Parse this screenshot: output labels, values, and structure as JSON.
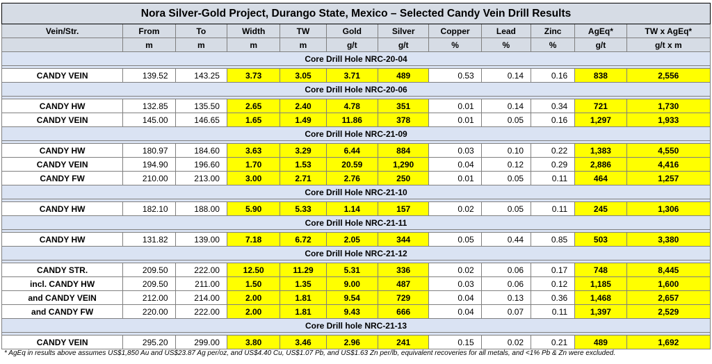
{
  "title": "Nora Silver-Gold Project, Durango State, Mexico – Selected Candy Vein Drill Results",
  "headers": [
    "Vein/Str.",
    "From",
    "To",
    "Width",
    "TW",
    "Gold",
    "Silver",
    "Copper",
    "Lead",
    "Zinc",
    "AgEq*",
    "TW x AgEq*"
  ],
  "units": [
    "",
    "m",
    "m",
    "m",
    "m",
    "g/t",
    "g/t",
    "%",
    "%",
    "%",
    "g/t",
    "g/t x m"
  ],
  "holes": [
    {
      "label": "Core Drill Hole NRC-20-04",
      "rows": [
        [
          "CANDY VEIN",
          "139.52",
          "143.25",
          "3.73",
          "3.05",
          "3.71",
          "489",
          "0.53",
          "0.14",
          "0.16",
          "838",
          "2,556"
        ]
      ]
    },
    {
      "label": "Core Drill Hole NRC-20-06",
      "rows": [
        [
          "CANDY HW",
          "132.85",
          "135.50",
          "2.65",
          "2.40",
          "4.78",
          "351",
          "0.01",
          "0.14",
          "0.34",
          "721",
          "1,730"
        ],
        [
          "CANDY VEIN",
          "145.00",
          "146.65",
          "1.65",
          "1.49",
          "11.86",
          "378",
          "0.01",
          "0.05",
          "0.16",
          "1,297",
          "1,933"
        ]
      ]
    },
    {
      "label": "Core Drill Hole NRC-21-09",
      "rows": [
        [
          "CANDY HW",
          "180.97",
          "184.60",
          "3.63",
          "3.29",
          "6.44",
          "884",
          "0.03",
          "0.10",
          "0.22",
          "1,383",
          "4,550"
        ],
        [
          "CANDY VEIN",
          "194.90",
          "196.60",
          "1.70",
          "1.53",
          "20.59",
          "1,290",
          "0.04",
          "0.12",
          "0.29",
          "2,886",
          "4,416"
        ],
        [
          "CANDY FW",
          "210.00",
          "213.00",
          "3.00",
          "2.71",
          "2.76",
          "250",
          "0.01",
          "0.05",
          "0.11",
          "464",
          "1,257"
        ]
      ]
    },
    {
      "label": "Core Drill Hole NRC-21-10",
      "rows": [
        [
          "CANDY HW",
          "182.10",
          "188.00",
          "5.90",
          "5.33",
          "1.14",
          "157",
          "0.02",
          "0.05",
          "0.11",
          "245",
          "1,306"
        ]
      ]
    },
    {
      "label": "Core Drill Hole NRC-21-11",
      "rows": [
        [
          "CANDY HW",
          "131.82",
          "139.00",
          "7.18",
          "6.72",
          "2.05",
          "344",
          "0.05",
          "0.44",
          "0.85",
          "503",
          "3,380"
        ]
      ]
    },
    {
      "label": "Core Drill Hole NRC-21-12",
      "rows": [
        [
          "CANDY STR.",
          "209.50",
          "222.00",
          "12.50",
          "11.29",
          "5.31",
          "336",
          "0.02",
          "0.06",
          "0.17",
          "748",
          "8,445"
        ],
        [
          "incl. CANDY HW",
          "209.50",
          "211.00",
          "1.50",
          "1.35",
          "9.00",
          "487",
          "0.03",
          "0.06",
          "0.12",
          "1,185",
          "1,600"
        ],
        [
          "and CANDY VEIN",
          "212.00",
          "214.00",
          "2.00",
          "1.81",
          "9.54",
          "729",
          "0.04",
          "0.13",
          "0.36",
          "1,468",
          "2,657"
        ],
        [
          "and CANDY FW",
          "220.00",
          "222.00",
          "2.00",
          "1.81",
          "9.43",
          "666",
          "0.04",
          "0.07",
          "0.11",
          "1,397",
          "2,529"
        ]
      ]
    },
    {
      "label": "Core Drill hole NRC-21-13",
      "rows": [
        [
          "CANDY VEIN",
          "295.20",
          "299.00",
          "3.80",
          "3.46",
          "2.96",
          "241",
          "0.15",
          "0.02",
          "0.21",
          "489",
          "1,692"
        ]
      ]
    }
  ],
  "footnote": "* AgEq in results above assumes US$1,850 Au and US$23.87 Ag per/oz, and US$4.40 Cu, US$1.07 Pb, and US$1.63 Zn per/lb, equivalent recoveries for all metals, and <1% Pb & Zn were excluded.",
  "colors": {
    "highlight": "#ffff00",
    "header_bg": "#d6dce5",
    "hole_bg": "#dae3f3"
  }
}
